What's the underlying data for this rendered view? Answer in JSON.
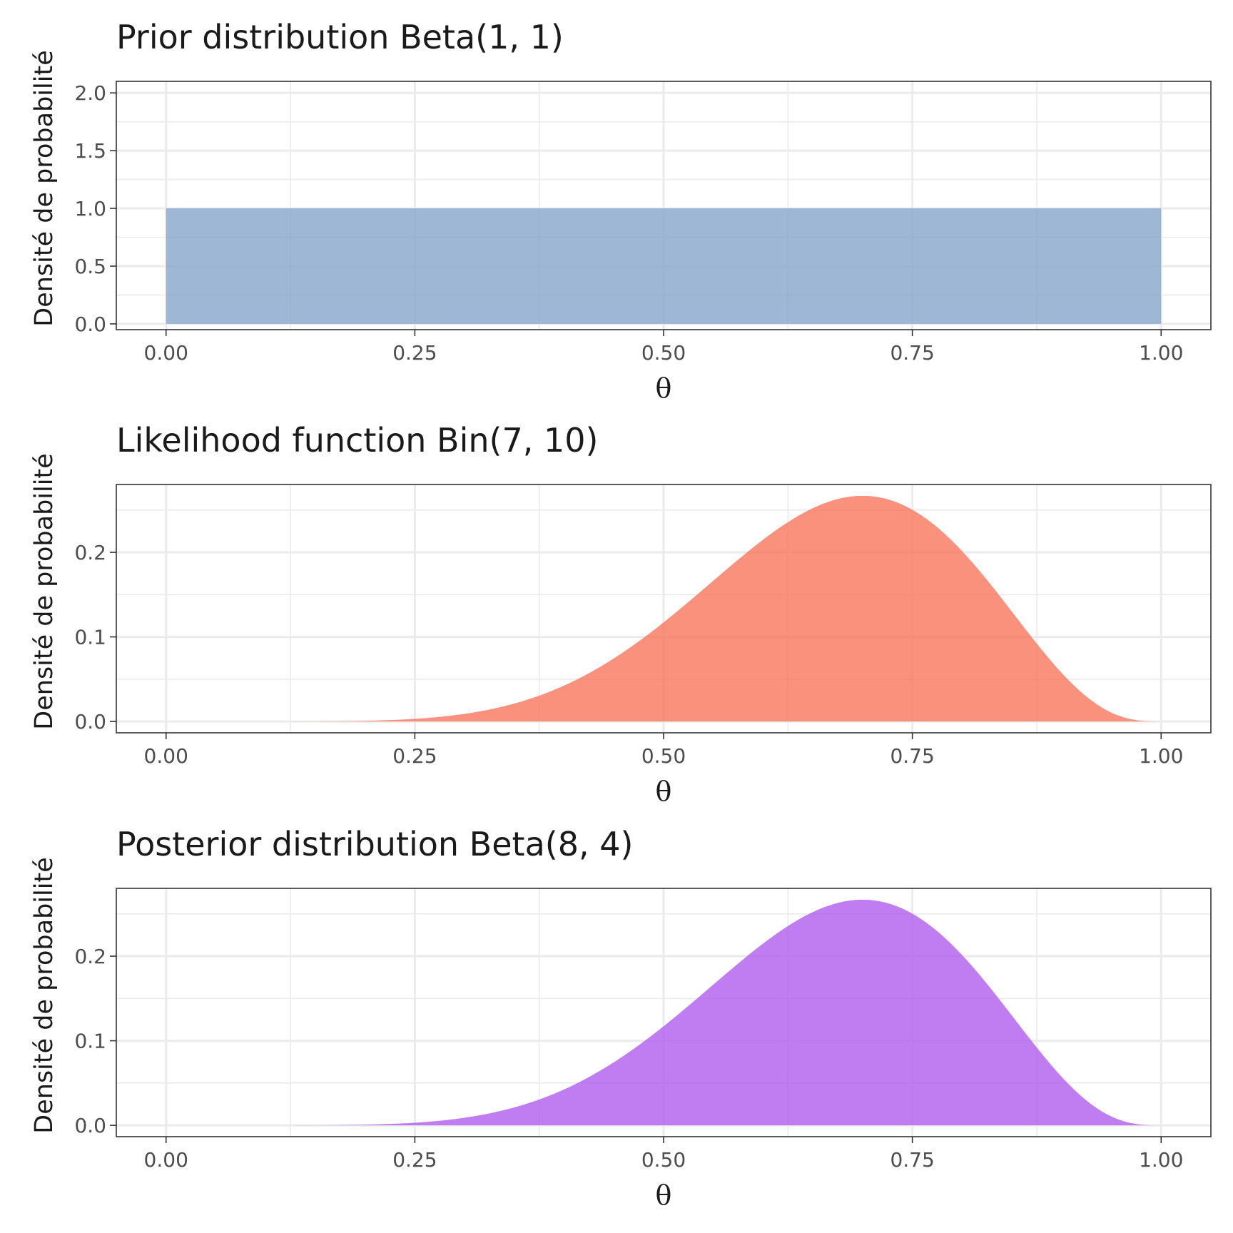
{
  "chart_data": [
    {
      "type": "area",
      "title": "Prior distribution Beta(1, 1)",
      "xlabel": "θ",
      "ylabel": "Densité de probabilité",
      "fill_color": "#86a5c9",
      "distribution": {
        "family": "beta",
        "params": [
          1,
          1
        ],
        "scale": 1
      },
      "xlim": [
        -0.05,
        1.05
      ],
      "ylim": [
        -0.05,
        2.1
      ],
      "x_ticks": [
        {
          "value": 0,
          "label": "0.00"
        },
        {
          "value": 0.25,
          "label": "0.25"
        },
        {
          "value": 0.5,
          "label": "0.50"
        },
        {
          "value": 0.75,
          "label": "0.75"
        },
        {
          "value": 1,
          "label": "1.00"
        }
      ],
      "y_ticks": [
        {
          "value": 0,
          "label": "0.0"
        },
        {
          "value": 0.5,
          "label": "0.5"
        },
        {
          "value": 1,
          "label": "1.0"
        },
        {
          "value": 1.5,
          "label": "1.5"
        },
        {
          "value": 2,
          "label": "2.0"
        }
      ],
      "x": [
        0,
        0.1,
        0.2,
        0.3,
        0.4,
        0.5,
        0.6,
        0.7,
        0.8,
        0.9,
        1
      ],
      "y": [
        1,
        1,
        1,
        1,
        1,
        1,
        1,
        1,
        1,
        1,
        1
      ],
      "grid": true
    },
    {
      "type": "area",
      "title": "Likelihood function Bin(7, 10)",
      "xlabel": "θ",
      "ylabel": "Densité de probabilité",
      "fill_color": "#f8765c",
      "distribution": {
        "family": "binomial-likelihood",
        "params": [
          7,
          10
        ],
        "scale": 1
      },
      "xlim": [
        -0.05,
        1.05
      ],
      "ylim": [
        -0.0134,
        0.2802
      ],
      "x_ticks": [
        {
          "value": 0,
          "label": "0.00"
        },
        {
          "value": 0.25,
          "label": "0.25"
        },
        {
          "value": 0.5,
          "label": "0.50"
        },
        {
          "value": 0.75,
          "label": "0.75"
        },
        {
          "value": 1,
          "label": "1.00"
        }
      ],
      "y_ticks": [
        {
          "value": 0,
          "label": "0.0"
        },
        {
          "value": 0.1,
          "label": "0.1"
        },
        {
          "value": 0.2,
          "label": "0.2"
        }
      ],
      "x": [
        0,
        0.1,
        0.2,
        0.3,
        0.4,
        0.5,
        0.6,
        0.7,
        0.8,
        0.9,
        1
      ],
      "y": [
        0,
        9e-06,
        0.00079,
        0.009,
        0.0425,
        0.1172,
        0.215,
        0.2668,
        0.2013,
        0.0574,
        0
      ],
      "grid": true
    },
    {
      "type": "area",
      "title": "Posterior distribution Beta(8, 4)",
      "xlabel": "θ",
      "ylabel": "Densité de probabilité",
      "fill_color": "#b05ced",
      "distribution": {
        "family": "beta",
        "params": [
          8,
          4
        ],
        "scale": 0.0909
      },
      "xlim": [
        -0.05,
        1.05
      ],
      "ylim": [
        -0.0134,
        0.2802
      ],
      "x_ticks": [
        {
          "value": 0,
          "label": "0.00"
        },
        {
          "value": 0.25,
          "label": "0.25"
        },
        {
          "value": 0.5,
          "label": "0.50"
        },
        {
          "value": 0.75,
          "label": "0.75"
        },
        {
          "value": 1,
          "label": "1.00"
        }
      ],
      "y_ticks": [
        {
          "value": 0,
          "label": "0.0"
        },
        {
          "value": 0.1,
          "label": "0.1"
        },
        {
          "value": 0.2,
          "label": "0.2"
        }
      ],
      "x": [
        0,
        0.1,
        0.2,
        0.3,
        0.4,
        0.5,
        0.6,
        0.7,
        0.8,
        0.9,
        1
      ],
      "y": [
        0,
        9e-06,
        0.00079,
        0.009,
        0.0425,
        0.1172,
        0.215,
        0.2668,
        0.2013,
        0.0574,
        0
      ],
      "grid": true
    }
  ]
}
